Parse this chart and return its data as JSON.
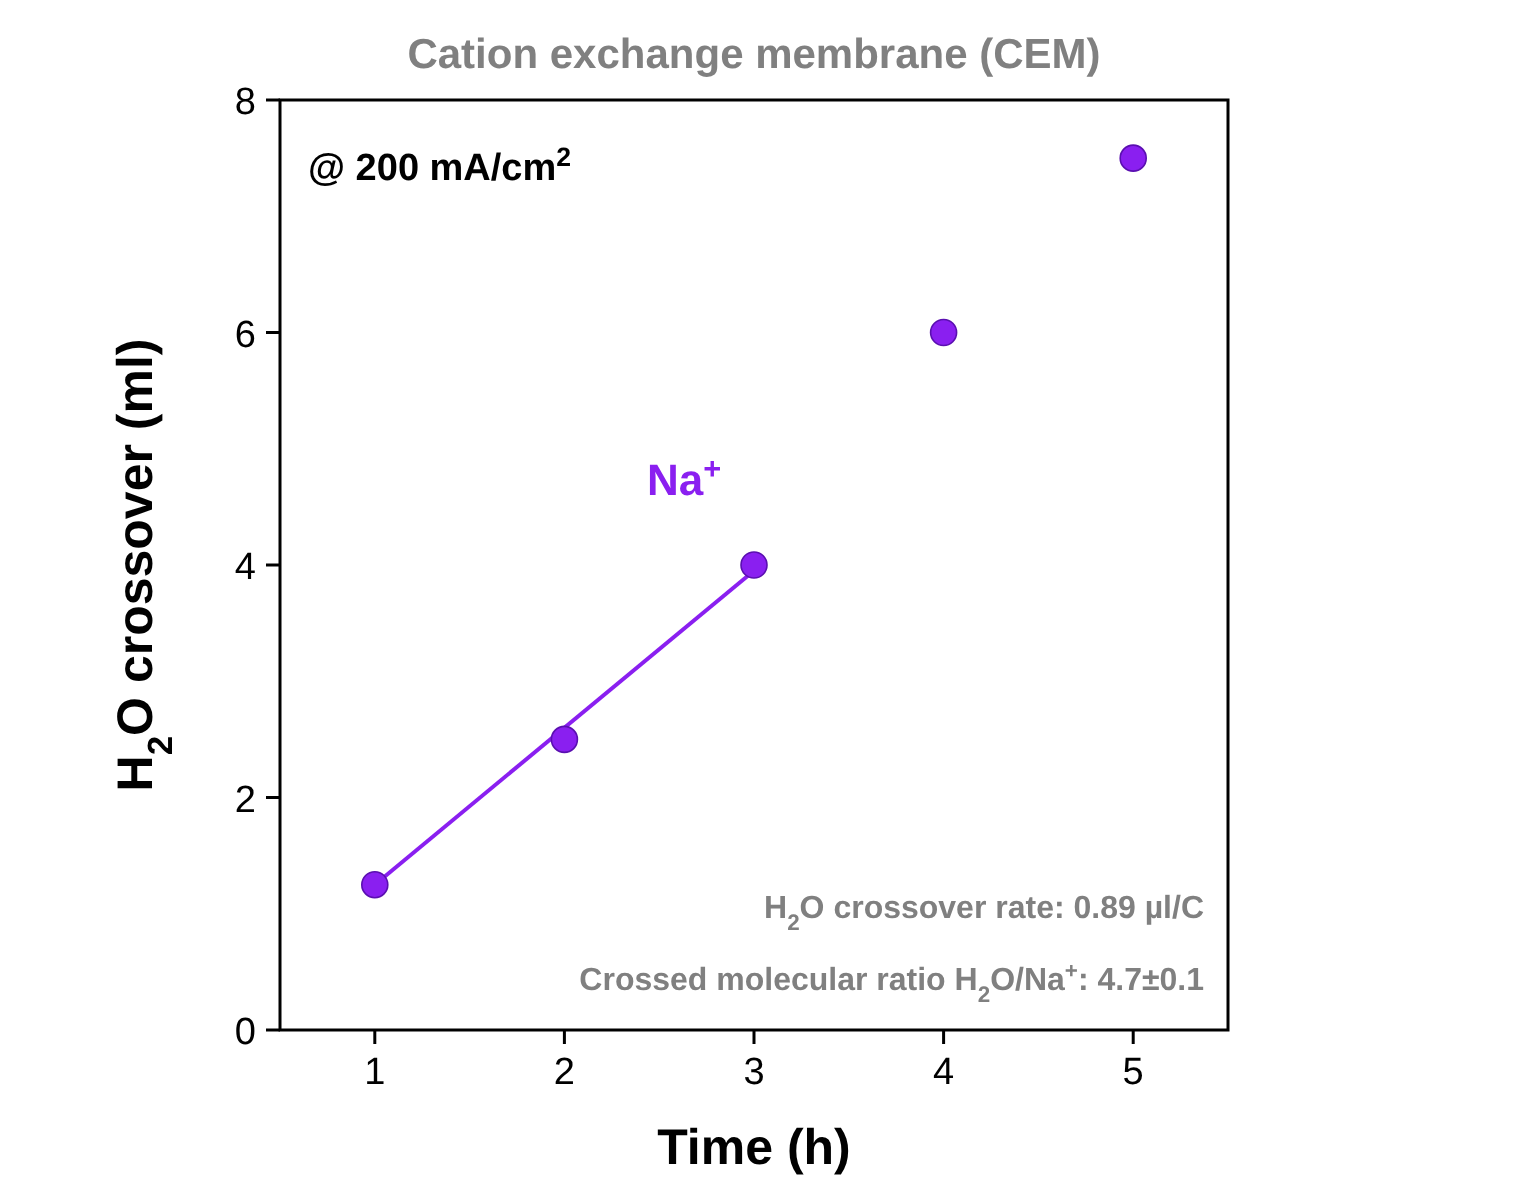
{
  "chart_data": {
    "type": "scatter",
    "title": "Cation exchange membrane (CEM)",
    "xlabel": "Time (h)",
    "ylabel": "H$_{2}$O crossover (ml)",
    "x": [
      1,
      2,
      3,
      4,
      5
    ],
    "series": [
      {
        "color": "#8a1ff0",
        "values": [
          1.25,
          2.5,
          4,
          6,
          7.5
        ]
      },
      {
        "type": "line",
        "name": "Na$^{+}$",
        "color": "#8a1ff0",
        "marker": "none",
        "x": [
          1,
          3
        ],
        "values": [
          1.25,
          3.95
        ]
      }
    ],
    "xlim": [
      0.5,
      5.5
    ],
    "xticks": [
      1,
      2,
      3,
      4,
      5
    ],
    "ylim": [
      0,
      8
    ],
    "yticks": [
      0,
      2,
      4,
      6,
      8
    ],
    "grid": false,
    "marker": "circle",
    "line_style": "solid",
    "annotations": [
      "@ 200 mA/cm$^{2}$",
      "H$_{2}$O crossover rate: 0.89 µl/C",
      "Crossed molecular ratio H$_{2}$O/Na$^{+}$: 4.7±0.1"
    ]
  }
}
